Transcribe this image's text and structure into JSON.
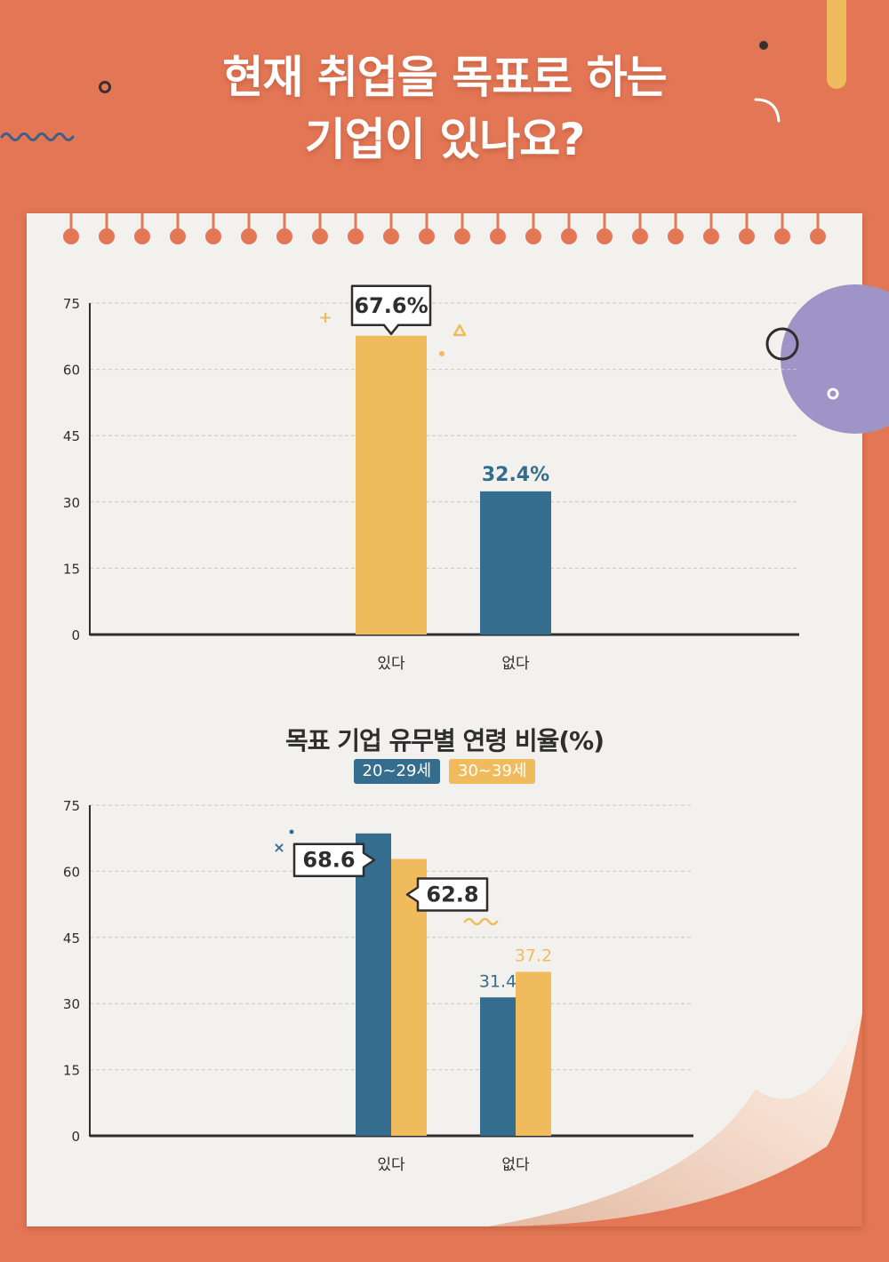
{
  "title": {
    "line1": "현재 취업을 목표로 하는",
    "line2": "기업이 있나요?"
  },
  "colors": {
    "background": "#e37755",
    "paper": "#f3f1ee",
    "yellow": "#efbb5d",
    "blue": "#346d8d",
    "purple": "#9f94c7",
    "text": "#2e2e2e"
  },
  "chart_data": [
    {
      "type": "bar",
      "categories": [
        "있다",
        "없다"
      ],
      "values": [
        67.6,
        32.4
      ],
      "labels": [
        "67.6%",
        "32.4%"
      ],
      "bar_colors": [
        "#efbb5d",
        "#346d8d"
      ],
      "ylim": [
        0,
        75
      ],
      "yticks": [
        0,
        15,
        30,
        45,
        60,
        75
      ],
      "grid": true,
      "title": "",
      "xlabel": "",
      "ylabel": ""
    },
    {
      "type": "bar",
      "title": "목표 기업 유무별 연령 비율(%)",
      "categories": [
        "있다",
        "없다"
      ],
      "series": [
        {
          "name": "20~29세",
          "values": [
            68.6,
            31.4
          ],
          "labels": [
            "68.6",
            "31.4"
          ],
          "color": "#346d8d"
        },
        {
          "name": "30~39세",
          "values": [
            62.8,
            37.2
          ],
          "labels": [
            "62.8",
            "37.2"
          ],
          "color": "#efbb5d"
        }
      ],
      "ylim": [
        0,
        75
      ],
      "yticks": [
        0,
        15,
        30,
        45,
        60,
        75
      ],
      "grid": true,
      "legend_position": "top-center",
      "xlabel": "",
      "ylabel": ""
    }
  ]
}
